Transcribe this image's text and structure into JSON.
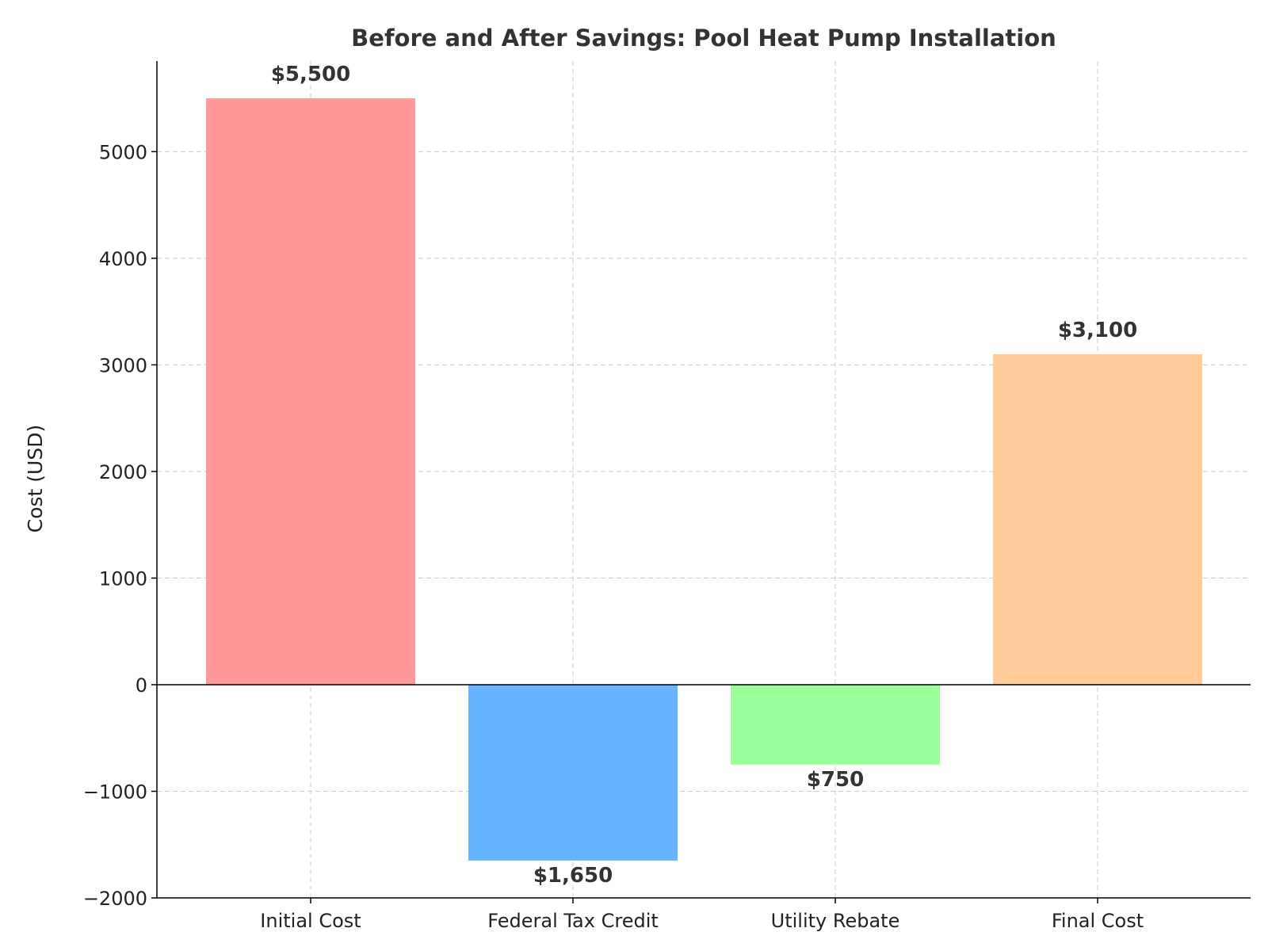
{
  "chart_data": {
    "type": "bar",
    "title": "Before and After Savings: Pool Heat Pump Installation",
    "xlabel": "",
    "ylabel": "Cost (USD)",
    "categories": [
      "Initial Cost",
      "Federal Tax Credit",
      "Utility Rebate",
      "Final Cost"
    ],
    "values": [
      5500,
      -1650,
      -750,
      3100
    ],
    "data_labels": [
      "$5,500",
      "$1,650",
      "$750",
      "$3,100"
    ],
    "colors": [
      "#ff9999",
      "#66b3ff",
      "#99ff99",
      "#ffcc99"
    ],
    "ylim": [
      -2000,
      5850
    ],
    "yticks": [
      -2000,
      -1000,
      0,
      1000,
      2000,
      3000,
      4000,
      5000
    ],
    "ytick_labels": [
      "−2000",
      "−1000",
      "0",
      "1000",
      "2000",
      "3000",
      "4000",
      "5000"
    ],
    "grid": true
  }
}
